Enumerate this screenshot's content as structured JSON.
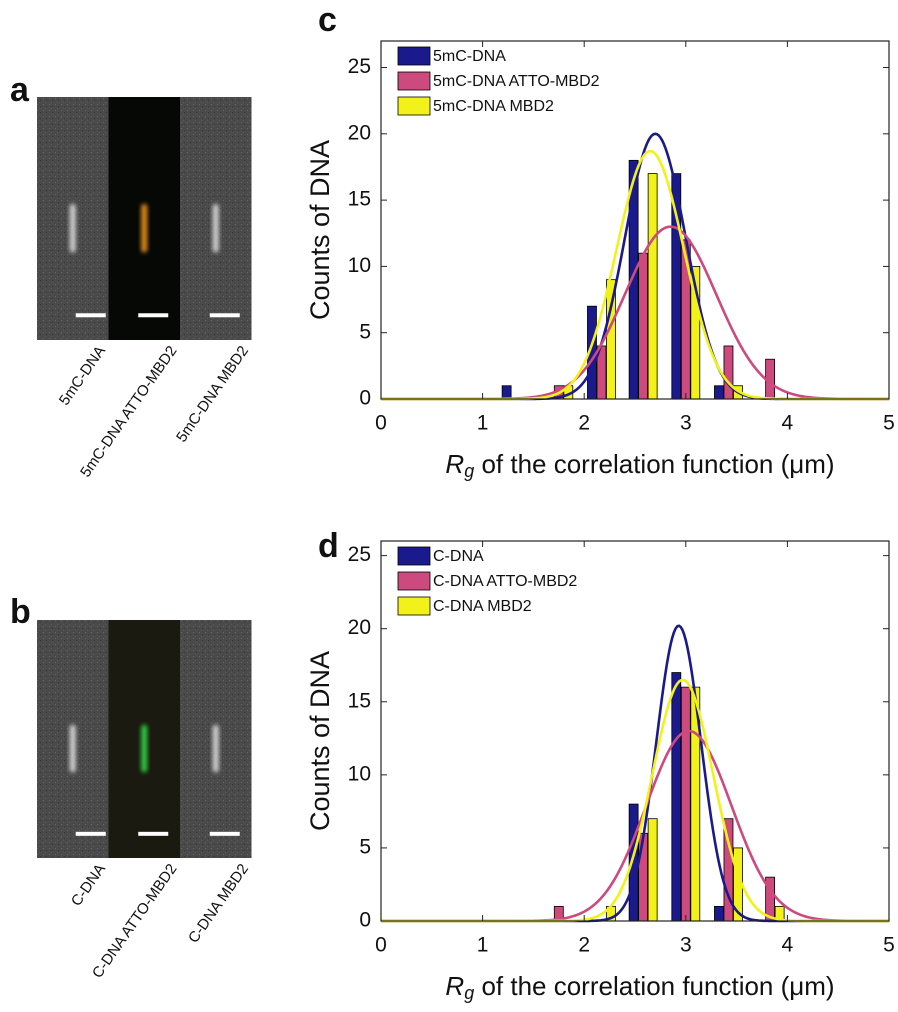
{
  "panels": [
    {
      "letter": "a",
      "images": [
        "5mC-DNA",
        "5mC-DNA ATTO-MBD2",
        "5mC-DNA MBD2"
      ]
    },
    {
      "letter": "b",
      "images": [
        "C-DNA",
        "C-DNA ATTO-MBD2",
        "C-DNA MBD2"
      ]
    }
  ],
  "chart_data": [
    {
      "type": "bar",
      "letter": "c",
      "ylabel": "Counts of DNA",
      "xlabel": {
        "symbol": "R",
        "subscript": "g",
        "text": " of the correlation function (μm)"
      },
      "x": [
        1.33,
        1.75,
        2.17,
        2.58,
        3.0,
        3.42,
        3.83
      ],
      "series": [
        {
          "name": "5mC-DNA",
          "color": "#1a1a8c",
          "values": [
            1,
            0,
            7,
            18,
            17,
            1,
            0
          ],
          "fit_mean": 2.7,
          "fit_sd": 0.3,
          "fit_peak": 20
        },
        {
          "name": "5mC-DNA ATTO-MBD2",
          "color": "#cc4a7e",
          "values": [
            0,
            1,
            4,
            11,
            12,
            4,
            3
          ],
          "fit_mean": 2.85,
          "fit_sd": 0.45,
          "fit_peak": 13
        },
        {
          "name": "5mC-DNA MBD2",
          "color": "#f2f21a",
          "values": [
            0,
            1,
            9,
            17,
            10,
            1,
            0
          ],
          "fit_mean": 2.65,
          "fit_sd": 0.33,
          "fit_peak": 18.7
        }
      ],
      "xlim": [
        0,
        5
      ],
      "xticks": [
        0,
        1,
        2,
        3,
        4,
        5
      ],
      "ylim": [
        0,
        27
      ],
      "yticks": [
        0,
        5,
        10,
        15,
        20,
        25
      ],
      "legend": "upper left"
    },
    {
      "type": "bar",
      "letter": "d",
      "ylabel": "Counts of DNA",
      "xlabel": {
        "symbol": "R",
        "subscript": "g",
        "text": " of the correlation function (μm)"
      },
      "x": [
        1.33,
        1.75,
        2.17,
        2.58,
        3.0,
        3.42,
        3.83
      ],
      "series": [
        {
          "name": "C-DNA",
          "color": "#1a1a8c",
          "values": [
            0,
            0,
            0,
            8,
            17,
            1,
            0
          ],
          "fit_mean": 2.93,
          "fit_sd": 0.22,
          "fit_peak": 20.2
        },
        {
          "name": "C-DNA ATTO-MBD2",
          "color": "#cc4a7e",
          "values": [
            0,
            1,
            0,
            6,
            16,
            7,
            3
          ],
          "fit_mean": 3.03,
          "fit_sd": 0.42,
          "fit_peak": 13
        },
        {
          "name": "C-DNA MBD2",
          "color": "#f2f21a",
          "values": [
            0,
            0,
            1,
            7,
            16,
            5,
            1
          ],
          "fit_mean": 2.97,
          "fit_sd": 0.3,
          "fit_peak": 16.5
        }
      ],
      "xlim": [
        0,
        5
      ],
      "xticks": [
        0,
        1,
        2,
        3,
        4,
        5
      ],
      "ylim": [
        0,
        26
      ],
      "yticks": [
        0,
        5,
        10,
        15,
        20,
        25
      ],
      "legend": "upper left"
    }
  ]
}
